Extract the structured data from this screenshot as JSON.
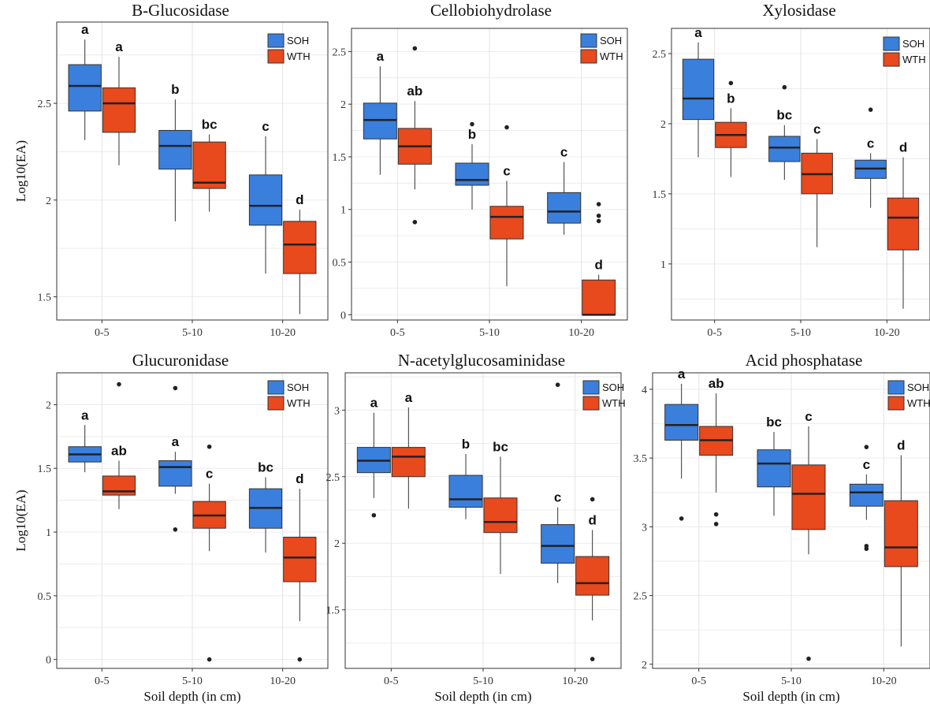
{
  "colors": {
    "SOH": "#3b7fdd",
    "WTH": "#e8491d"
  },
  "chart_data": [
    {
      "type": "box",
      "title": "B-Glucosidase",
      "ylabel": "Log10(EA)",
      "xlabel": "",
      "categories": [
        "0-5",
        "5-10",
        "10-20"
      ],
      "ylim": [
        1.38,
        2.92
      ],
      "yticks": [
        1.5,
        2.0,
        2.5
      ],
      "legend": [
        "SOH",
        "WTH"
      ],
      "series": [
        {
          "name": "SOH",
          "boxes": [
            {
              "min": 2.31,
              "q1": 2.46,
              "median": 2.59,
              "q3": 2.7,
              "max": 2.83,
              "outliers": [],
              "label": "a"
            },
            {
              "min": 1.89,
              "q1": 2.16,
              "median": 2.28,
              "q3": 2.36,
              "max": 2.52,
              "outliers": [],
              "label": "b"
            },
            {
              "min": 1.62,
              "q1": 1.87,
              "median": 1.97,
              "q3": 2.13,
              "max": 2.33,
              "outliers": [],
              "label": "c"
            }
          ]
        },
        {
          "name": "WTH",
          "boxes": [
            {
              "min": 2.18,
              "q1": 2.35,
              "median": 2.5,
              "q3": 2.58,
              "max": 2.74,
              "outliers": [],
              "label": "a"
            },
            {
              "min": 1.94,
              "q1": 2.06,
              "median": 2.09,
              "q3": 2.3,
              "max": 2.34,
              "outliers": [],
              "label": "bc"
            },
            {
              "min": 1.41,
              "q1": 1.62,
              "median": 1.77,
              "q3": 1.89,
              "max": 1.95,
              "outliers": [],
              "label": "d"
            }
          ]
        }
      ]
    },
    {
      "type": "box",
      "title": "Cellobiohydrolase",
      "ylabel": "",
      "xlabel": "",
      "categories": [
        "0-5",
        "5-10",
        "10-20"
      ],
      "ylim": [
        -0.05,
        2.72
      ],
      "yticks": [
        0.0,
        0.5,
        1.0,
        1.5,
        2.0,
        2.5
      ],
      "legend": [
        "SOH",
        "WTH"
      ],
      "series": [
        {
          "name": "SOH",
          "boxes": [
            {
              "min": 1.33,
              "q1": 1.67,
              "median": 1.85,
              "q3": 2.01,
              "max": 2.36,
              "outliers": [],
              "label": "a"
            },
            {
              "min": 1.0,
              "q1": 1.23,
              "median": 1.28,
              "q3": 1.44,
              "max": 1.62,
              "outliers": [
                1.81
              ],
              "label": "b"
            },
            {
              "min": 0.76,
              "q1": 0.87,
              "median": 0.98,
              "q3": 1.16,
              "max": 1.45,
              "outliers": [],
              "label": "c"
            }
          ]
        },
        {
          "name": "WTH",
          "boxes": [
            {
              "min": 1.19,
              "q1": 1.43,
              "median": 1.6,
              "q3": 1.77,
              "max": 2.03,
              "outliers": [
                2.53,
                0.88
              ],
              "label": "ab"
            },
            {
              "min": 0.27,
              "q1": 0.72,
              "median": 0.93,
              "q3": 1.03,
              "max": 1.27,
              "outliers": [
                1.78
              ],
              "label": "c"
            },
            {
              "min": 0.0,
              "q1": 0.0,
              "median": 0.0,
              "q3": 0.33,
              "max": 0.38,
              "outliers": [
                1.05,
                0.94,
                0.89
              ],
              "label": "d"
            }
          ]
        }
      ]
    },
    {
      "type": "box",
      "title": "Xylosidase",
      "ylabel": "",
      "xlabel": "",
      "categories": [
        "0-5",
        "5-10",
        "10-20"
      ],
      "ylim": [
        0.6,
        2.68
      ],
      "yticks": [
        1.0,
        1.5,
        2.0,
        2.5
      ],
      "legend": [
        "SOH",
        "WTH"
      ],
      "series": [
        {
          "name": "SOH",
          "boxes": [
            {
              "min": 1.76,
              "q1": 2.03,
              "median": 2.18,
              "q3": 2.46,
              "max": 2.58,
              "outliers": [],
              "label": "a"
            },
            {
              "min": 1.6,
              "q1": 1.73,
              "median": 1.83,
              "q3": 1.91,
              "max": 1.99,
              "outliers": [
                2.26
              ],
              "label": "bc"
            },
            {
              "min": 1.4,
              "q1": 1.61,
              "median": 1.68,
              "q3": 1.74,
              "max": 1.79,
              "outliers": [
                2.1
              ],
              "label": "c"
            }
          ]
        },
        {
          "name": "WTH",
          "boxes": [
            {
              "min": 1.62,
              "q1": 1.83,
              "median": 1.92,
              "q3": 2.01,
              "max": 2.11,
              "outliers": [
                2.29
              ],
              "label": "b"
            },
            {
              "min": 1.12,
              "q1": 1.5,
              "median": 1.64,
              "q3": 1.79,
              "max": 1.89,
              "outliers": [],
              "label": "c"
            },
            {
              "min": 0.68,
              "q1": 1.1,
              "median": 1.33,
              "q3": 1.47,
              "max": 1.76,
              "outliers": [],
              "label": "d"
            }
          ]
        }
      ]
    },
    {
      "type": "box",
      "title": "Glucuronidase",
      "ylabel": "Log10(EA)",
      "xlabel": "Soil depth (in cm)",
      "categories": [
        "0-5",
        "5-10",
        "10-20"
      ],
      "ylim": [
        -0.07,
        2.25
      ],
      "yticks": [
        0.0,
        0.5,
        1.0,
        1.5,
        2.0
      ],
      "legend": [
        "SOH",
        "WTH"
      ],
      "series": [
        {
          "name": "SOH",
          "boxes": [
            {
              "min": 1.47,
              "q1": 1.55,
              "median": 1.61,
              "q3": 1.67,
              "max": 1.84,
              "outliers": [],
              "label": "a"
            },
            {
              "min": 1.3,
              "q1": 1.36,
              "median": 1.51,
              "q3": 1.56,
              "max": 1.63,
              "outliers": [
                1.02,
                2.13
              ],
              "label": "a"
            },
            {
              "min": 0.84,
              "q1": 1.03,
              "median": 1.19,
              "q3": 1.34,
              "max": 1.43,
              "outliers": [],
              "label": "bc"
            }
          ]
        },
        {
          "name": "WTH",
          "boxes": [
            {
              "min": 1.18,
              "q1": 1.29,
              "median": 1.32,
              "q3": 1.44,
              "max": 1.56,
              "outliers": [
                2.16
              ],
              "label": "ab"
            },
            {
              "min": 0.85,
              "q1": 1.03,
              "median": 1.13,
              "q3": 1.24,
              "max": 1.38,
              "outliers": [
                1.67,
                0.0
              ],
              "label": "c"
            },
            {
              "min": 0.3,
              "q1": 0.61,
              "median": 0.8,
              "q3": 0.96,
              "max": 1.34,
              "outliers": [
                0.0
              ],
              "label": "d"
            }
          ]
        }
      ]
    },
    {
      "type": "box",
      "title": "N-acetylglucosaminidase",
      "ylabel": "",
      "xlabel": "Soil depth (in cm)",
      "categories": [
        "0-5",
        "5-10",
        "10-20"
      ],
      "ylim": [
        1.06,
        3.28
      ],
      "yticks": [
        1.5,
        2.0,
        2.5,
        3.0
      ],
      "legend": [
        "SOH",
        "WTH"
      ],
      "series": [
        {
          "name": "SOH",
          "boxes": [
            {
              "min": 2.34,
              "q1": 2.53,
              "median": 2.62,
              "q3": 2.72,
              "max": 2.98,
              "outliers": [
                2.21
              ],
              "label": "a"
            },
            {
              "min": 2.18,
              "q1": 2.27,
              "median": 2.33,
              "q3": 2.51,
              "max": 2.67,
              "outliers": [],
              "label": "b"
            },
            {
              "min": 1.7,
              "q1": 1.85,
              "median": 1.98,
              "q3": 2.14,
              "max": 2.27,
              "outliers": [
                3.19
              ],
              "label": "c"
            }
          ]
        },
        {
          "name": "WTH",
          "boxes": [
            {
              "min": 2.26,
              "q1": 2.5,
              "median": 2.65,
              "q3": 2.72,
              "max": 3.02,
              "outliers": [],
              "label": "a"
            },
            {
              "min": 1.77,
              "q1": 2.08,
              "median": 2.16,
              "q3": 2.34,
              "max": 2.65,
              "outliers": [],
              "label": "bc"
            },
            {
              "min": 1.42,
              "q1": 1.61,
              "median": 1.7,
              "q3": 1.9,
              "max": 2.1,
              "outliers": [
                2.33,
                1.13
              ],
              "label": "d"
            }
          ]
        }
      ]
    },
    {
      "type": "box",
      "title": "Acid phosphatase",
      "ylabel": "",
      "xlabel": "Soil depth (in cm)",
      "categories": [
        "0-5",
        "5-10",
        "10-20"
      ],
      "ylim": [
        1.97,
        4.12
      ],
      "yticks": [
        2.0,
        2.5,
        3.0,
        3.5,
        4.0
      ],
      "legend": [
        "SOH",
        "WTH"
      ],
      "series": [
        {
          "name": "SOH",
          "boxes": [
            {
              "min": 3.35,
              "q1": 3.63,
              "median": 3.74,
              "q3": 3.89,
              "max": 4.04,
              "outliers": [
                3.06
              ],
              "label": "a"
            },
            {
              "min": 3.08,
              "q1": 3.29,
              "median": 3.46,
              "q3": 3.56,
              "max": 3.69,
              "outliers": [],
              "label": "bc"
            },
            {
              "min": 3.05,
              "q1": 3.15,
              "median": 3.25,
              "q3": 3.31,
              "max": 3.38,
              "outliers": [
                3.58,
                2.86,
                2.84
              ],
              "label": "c"
            }
          ]
        },
        {
          "name": "WTH",
          "boxes": [
            {
              "min": 3.25,
              "q1": 3.52,
              "median": 3.63,
              "q3": 3.73,
              "max": 3.97,
              "outliers": [
                3.09,
                3.02
              ],
              "label": "ab"
            },
            {
              "min": 2.8,
              "q1": 2.98,
              "median": 3.24,
              "q3": 3.45,
              "max": 3.73,
              "outliers": [
                2.04
              ],
              "label": "c"
            },
            {
              "min": 2.13,
              "q1": 2.71,
              "median": 2.85,
              "q3": 3.19,
              "max": 3.52,
              "outliers": [],
              "label": "d"
            }
          ]
        }
      ]
    }
  ]
}
